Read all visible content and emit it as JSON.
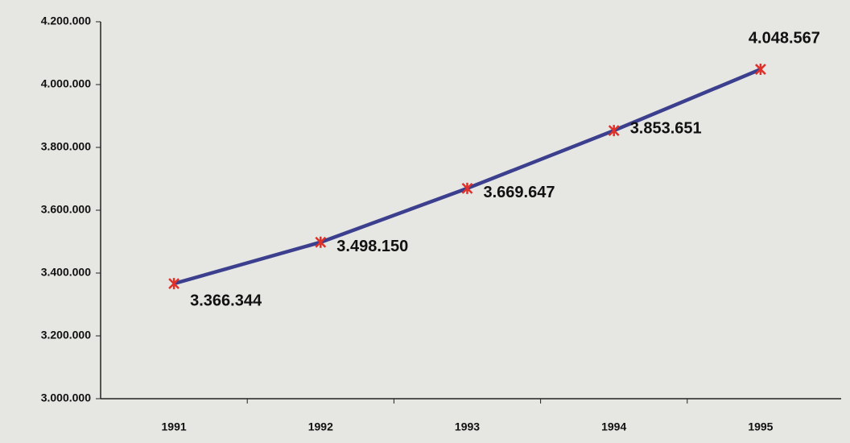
{
  "chart_data": {
    "type": "line",
    "categories": [
      "1991",
      "1992",
      "1993",
      "1994",
      "1995"
    ],
    "series": [
      {
        "color": "#3b3f8e",
        "values": [
          3366344,
          3498150,
          3669647,
          3853651,
          4048567
        ],
        "value_labels": [
          "3.366.344",
          "3.498.150",
          "3.669.647",
          "3.853.651",
          "4.048.567"
        ]
      }
    ],
    "marker_color": "#e0302a",
    "ylim": [
      3000000,
      4200000
    ],
    "yticks": [
      {
        "value": 3000000,
        "label": "3.000.000"
      },
      {
        "value": 3200000,
        "label": "3.200.000"
      },
      {
        "value": 3400000,
        "label": "3.400.000"
      },
      {
        "value": 3600000,
        "label": "3.600.000"
      },
      {
        "value": 3800000,
        "label": "3.800.000"
      },
      {
        "value": 4000000,
        "label": "4.000.000"
      },
      {
        "value": 4200000,
        "label": "4.200.000"
      }
    ],
    "grid": false
  }
}
